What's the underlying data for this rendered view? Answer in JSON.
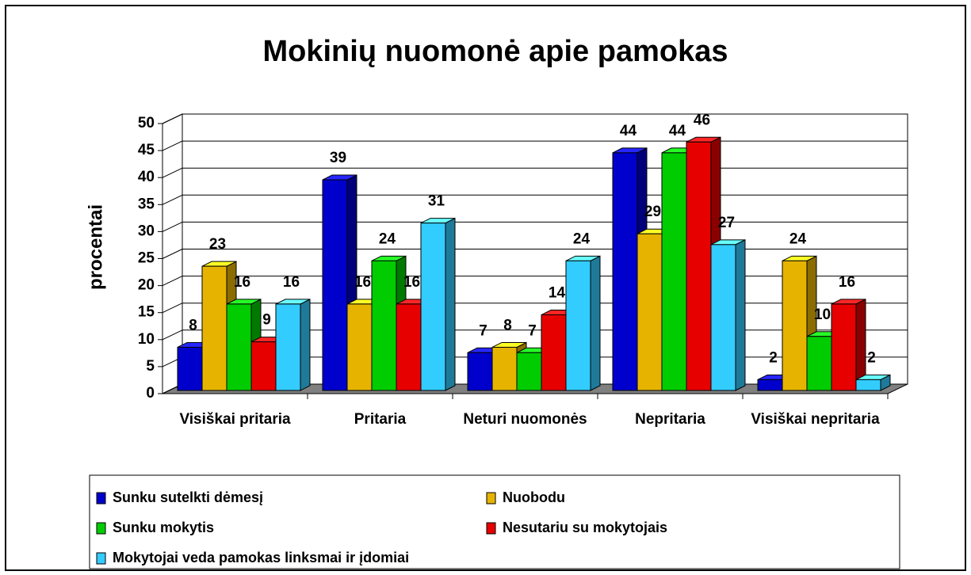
{
  "chart_data": {
    "type": "bar3d",
    "title": "Mokinių nuomonė apie pamokas",
    "ylabel": "procentai",
    "categories": [
      "Visiškai pritaria",
      "Pritaria",
      "Neturi nuomonės",
      "Nepritaria",
      "Visiškai nepritaria"
    ],
    "series": [
      {
        "name": "Sunku sutelkti dėmesį",
        "color": "#0000cc",
        "values": [
          8,
          39,
          7,
          44,
          2
        ]
      },
      {
        "name": "Nuobodu",
        "color": "#e6b400",
        "values": [
          23,
          16,
          8,
          29,
          24
        ]
      },
      {
        "name": "Sunku mokytis",
        "color": "#00cc00",
        "values": [
          16,
          24,
          7,
          44,
          10
        ]
      },
      {
        "name": "Nesutariu su mokytojais",
        "color": "#e60000",
        "values": [
          9,
          16,
          14,
          46,
          16
        ]
      },
      {
        "name": "Mokytojai veda pamokas linksmai ir įdomiai",
        "color": "#33ccff",
        "values": [
          16,
          31,
          24,
          27,
          2
        ]
      }
    ],
    "ylim": [
      0,
      50
    ],
    "yticks": [
      0,
      5,
      10,
      15,
      20,
      25,
      30,
      35,
      40,
      45,
      50
    ],
    "grid": true,
    "legend": "bottom"
  }
}
